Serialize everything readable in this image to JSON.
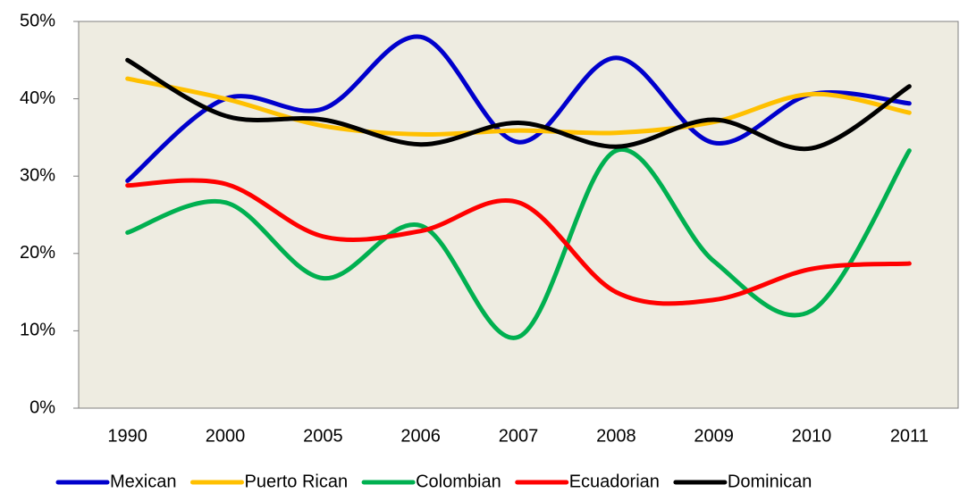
{
  "chart_data": {
    "type": "line",
    "categories": [
      "1990",
      "2000",
      "2005",
      "2006",
      "2007",
      "2008",
      "2009",
      "2010",
      "2011"
    ],
    "series": [
      {
        "name": "Mexican",
        "color": "#0000cc",
        "values": [
          29.4,
          40,
          38.7,
          48,
          34.4,
          45.3,
          34.3,
          40.6,
          39.4
        ]
      },
      {
        "name": "Puerto Rican",
        "color": "#ffc000",
        "values": [
          42.6,
          40,
          36.5,
          35.4,
          35.9,
          35.6,
          37,
          40.6,
          38.2
        ]
      },
      {
        "name": "Colombian",
        "color": "#00b050",
        "values": [
          22.7,
          26.6,
          16.8,
          23.6,
          9.2,
          33.3,
          19,
          12.6,
          33.3
        ]
      },
      {
        "name": "Ecuadorian",
        "color": "#ff0000",
        "values": [
          28.8,
          29,
          22.2,
          22.9,
          26.6,
          15,
          14,
          18,
          18.7
        ]
      },
      {
        "name": "Dominican",
        "color": "#000000",
        "values": [
          45,
          37.8,
          37.3,
          34.1,
          36.9,
          33.8,
          37.3,
          33.6,
          41.6
        ]
      }
    ],
    "ylim": [
      0,
      50
    ],
    "yticks": [
      {
        "value": 0,
        "label": "0%"
      },
      {
        "value": 10,
        "label": "10%"
      },
      {
        "value": 20,
        "label": "20%"
      },
      {
        "value": 30,
        "label": "30%"
      },
      {
        "value": 40,
        "label": "40%"
      },
      {
        "value": 50,
        "label": "50%"
      }
    ],
    "legend": "bottom",
    "plot_background": "#eeece1"
  }
}
